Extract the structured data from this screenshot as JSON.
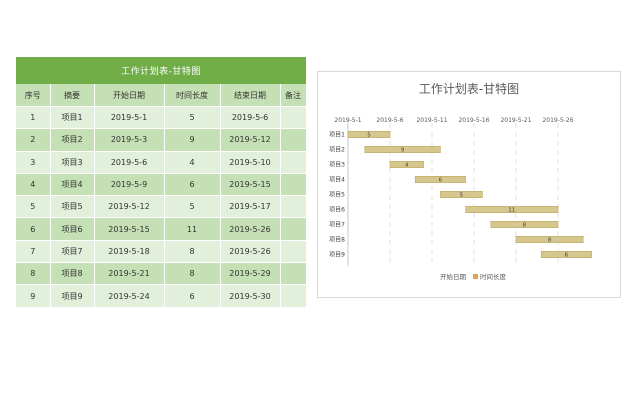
{
  "sheet": {
    "title": "工作计划表-甘特图",
    "headers": [
      "序号",
      "摘要",
      "开始日期",
      "时间长度",
      "结束日期",
      "备注"
    ],
    "rows": [
      [
        "1",
        "项目1",
        "2019-5-1",
        "5",
        "2019-5-6",
        ""
      ],
      [
        "2",
        "项目2",
        "2019-5-3",
        "9",
        "2019-5-12",
        ""
      ],
      [
        "3",
        "项目3",
        "2019-5-6",
        "4",
        "2019-5-10",
        ""
      ],
      [
        "4",
        "项目4",
        "2019-5-9",
        "6",
        "2019-5-15",
        ""
      ],
      [
        "5",
        "项目5",
        "2019-5-12",
        "5",
        "2019-5-17",
        ""
      ],
      [
        "6",
        "项目6",
        "2019-5-15",
        "11",
        "2019-5-26",
        ""
      ],
      [
        "7",
        "项目7",
        "2019-5-18",
        "8",
        "2019-5-26",
        ""
      ],
      [
        "8",
        "项目8",
        "2019-5-21",
        "8",
        "2019-5-29",
        ""
      ],
      [
        "9",
        "项目9",
        "2019-5-24",
        "6",
        "2019-5-30",
        ""
      ]
    ]
  },
  "chart_data": {
    "type": "bar",
    "orientation": "horizontal-stacked",
    "title": "工作计划表-甘特图",
    "categories": [
      "项目1",
      "项目2",
      "项目3",
      "项目4",
      "项目5",
      "项目6",
      "项目7",
      "项目8",
      "项目9"
    ],
    "x_ticks": [
      "2019-5-1",
      "2019-5-6",
      "2019-5-11",
      "2019-5-16",
      "2019-5-21",
      "2019-5-26"
    ],
    "xlim": [
      "2019-5-1",
      "2019-5-31"
    ],
    "series": [
      {
        "name": "开始日期",
        "values": [
          "2019-5-1",
          "2019-5-3",
          "2019-5-6",
          "2019-5-9",
          "2019-5-12",
          "2019-5-15",
          "2019-5-18",
          "2019-5-21",
          "2019-5-24"
        ],
        "color": "none"
      },
      {
        "name": "时间长度",
        "values": [
          5,
          9,
          4,
          6,
          5,
          11,
          8,
          8,
          6
        ],
        "color": "#d6c78f"
      }
    ],
    "legend": {
      "position": "bottom",
      "entries": [
        "开始日期",
        "时间长度"
      ]
    },
    "grid": "vertical-dashed"
  },
  "colors": {
    "header_green": "#70ad47",
    "row_light": "#e2efda",
    "row_mid": "#c5e0b4",
    "bar_fill": "#d6c78f",
    "bar_border": "#bfa95f"
  }
}
